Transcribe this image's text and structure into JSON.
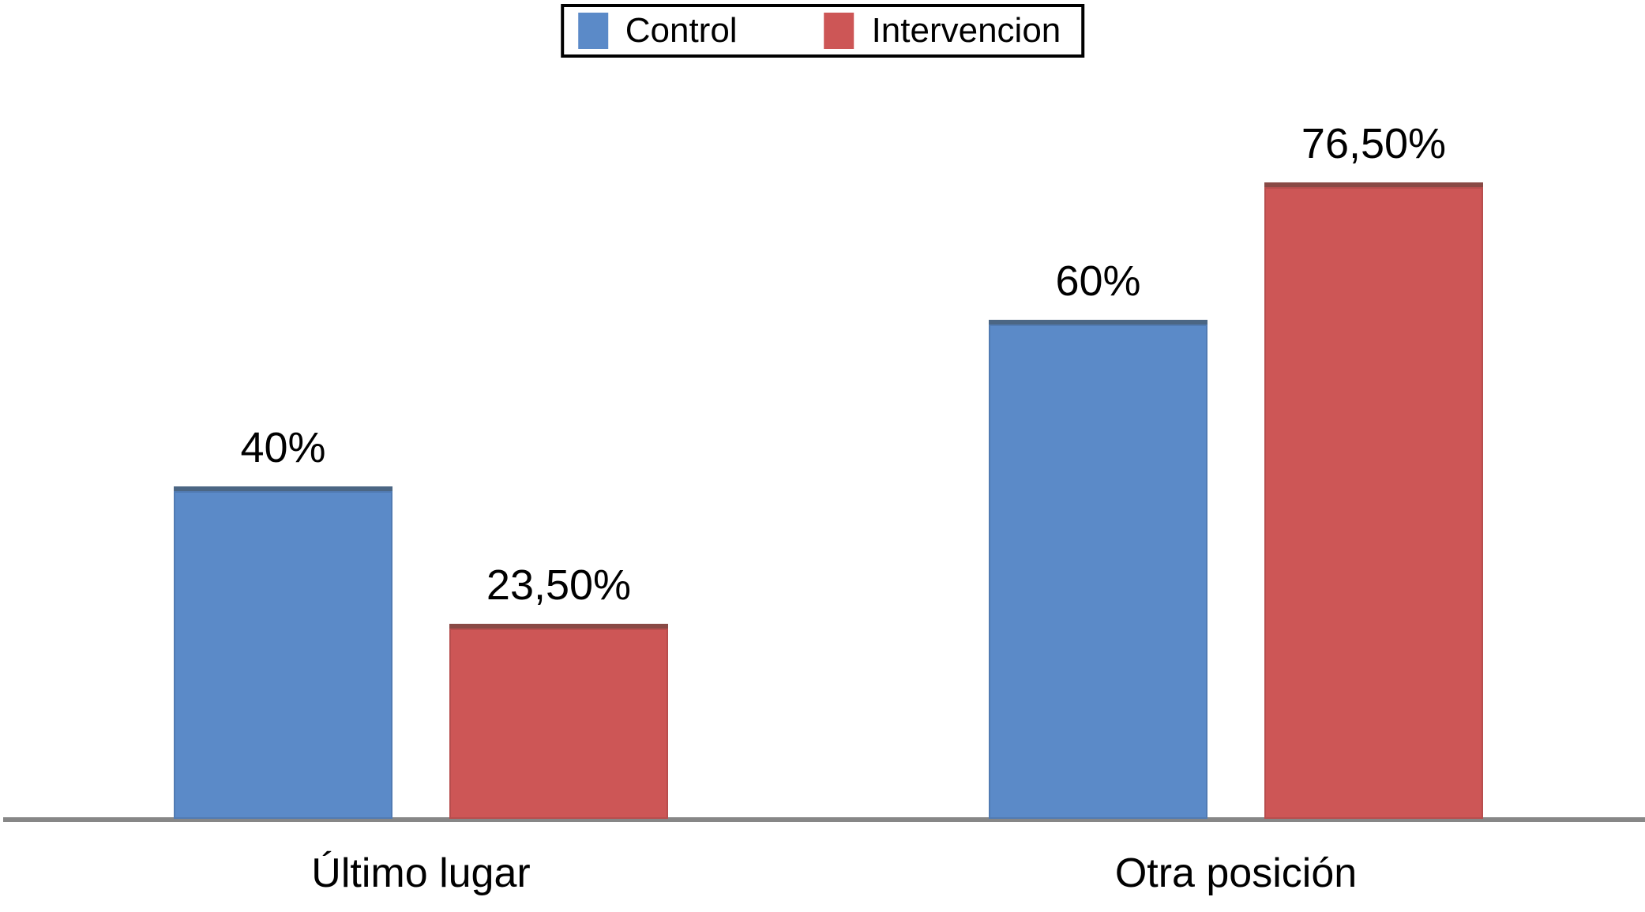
{
  "chart_data": {
    "type": "bar",
    "categories": [
      "Último lugar",
      "Otra posición"
    ],
    "series": [
      {
        "name": "Control",
        "color": "#5B8AC8",
        "values": [
          40,
          60
        ],
        "labels": [
          "40%",
          "60%"
        ]
      },
      {
        "name": "Intervencion",
        "color": "#CD5656",
        "values": [
          23.5,
          76.5
        ],
        "labels": [
          "23,50%",
          "76,50%"
        ]
      }
    ],
    "ylim": [
      0,
      100
    ],
    "grid": false,
    "legend_position": "top-center",
    "axis_line_color": "#878787",
    "background": "#FFFFFF",
    "value_format": "percent, comma decimal separator"
  },
  "legend": {
    "items": [
      {
        "label": "Control",
        "color": "#5B8AC8"
      },
      {
        "label": "Intervencion",
        "color": "#CD5656"
      }
    ]
  }
}
